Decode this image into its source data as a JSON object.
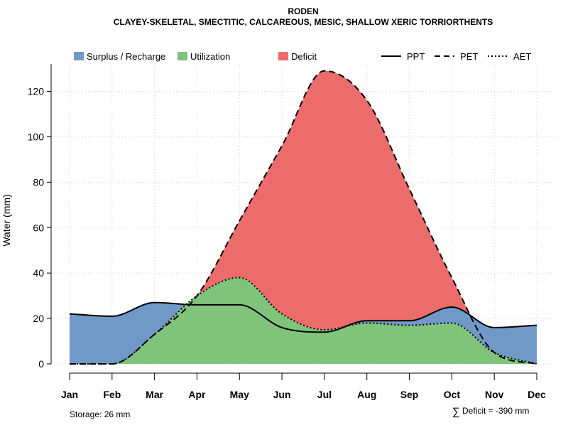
{
  "chart_data": {
    "type": "area",
    "title": "RODEN",
    "subtitle": "CLAYEY-SKELETAL, SMECTITIC, CALCAREOUS, MESIC, SHALLOW XERIC TORRIORTHENTS",
    "xlabel": "",
    "ylabel": "Water (mm)",
    "ylim": [
      0,
      130
    ],
    "yticks": [
      0,
      20,
      40,
      60,
      80,
      100,
      120
    ],
    "grid": true,
    "categories": [
      "Jan",
      "Feb",
      "Mar",
      "Apr",
      "May",
      "Jun",
      "Jul",
      "Aug",
      "Sep",
      "Oct",
      "Nov",
      "Dec"
    ],
    "series": [
      {
        "name": "PPT",
        "style": "solid",
        "values": [
          22,
          21,
          27,
          26,
          26,
          16,
          14,
          19,
          19,
          25,
          16,
          17
        ]
      },
      {
        "name": "PET",
        "style": "dashed",
        "values": [
          0,
          0,
          13,
          30,
          63,
          96,
          129,
          116,
          77,
          38,
          5,
          0
        ]
      },
      {
        "name": "AET",
        "style": "dotted",
        "values": [
          0,
          0,
          13,
          30,
          38,
          22,
          15,
          18,
          17,
          18,
          5,
          0
        ]
      }
    ],
    "legend": {
      "position": "top",
      "fill_items": [
        {
          "label": "Surplus / Recharge",
          "color": "#7199c8"
        },
        {
          "label": "Utilization",
          "color": "#7fc47a"
        },
        {
          "label": "Deficit",
          "color": "#ec6b6b"
        }
      ],
      "line_items": [
        {
          "label": "PPT",
          "style": "solid"
        },
        {
          "label": "PET",
          "style": "dashed"
        },
        {
          "label": "AET",
          "style": "dotted"
        }
      ]
    },
    "annotations": {
      "storage": "Storage: 26 mm",
      "deficit_symbol": "∑",
      "deficit": "Deficit = -390 mm"
    }
  }
}
